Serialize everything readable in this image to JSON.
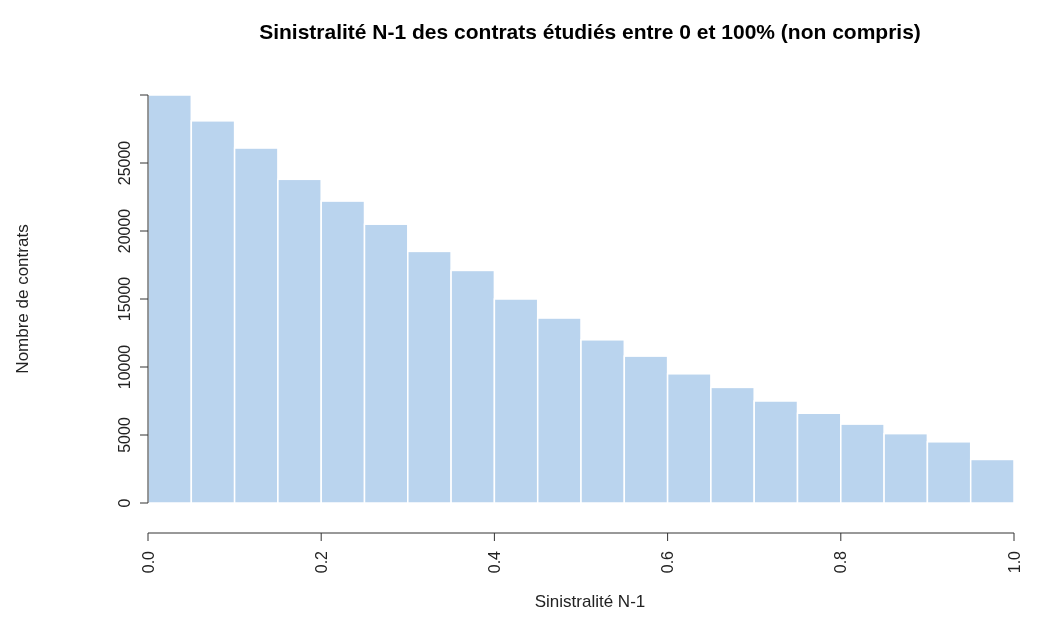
{
  "chart_data": {
    "type": "histogram",
    "title": "Sinistralité N-1 des contrats étudiés entre 0 et 100% (non compris)",
    "xlabel": "Sinistralité N-1",
    "ylabel": "Nombre de contrats",
    "bins": [
      0,
      0.05,
      0.1,
      0.15,
      0.2,
      0.25,
      0.3,
      0.35,
      0.4,
      0.45,
      0.5,
      0.55,
      0.6,
      0.65,
      0.7,
      0.75,
      0.8,
      0.85,
      0.9,
      0.95,
      1
    ],
    "values": [
      30000,
      28100,
      26100,
      23800,
      22200,
      20500,
      18500,
      17100,
      15000,
      13600,
      12000,
      10800,
      9500,
      8500,
      7500,
      6600,
      5800,
      5100,
      4500,
      3200
    ],
    "color": "#bad4ee",
    "xlim": [
      0,
      1
    ],
    "xticks": [
      {
        "value": 0,
        "label": "0.0"
      },
      0.2,
      0.4,
      0.6,
      0.8,
      {
        "value": 1,
        "label": "1.0"
      }
    ],
    "ylim": [
      0,
      30000
    ],
    "yticks": [
      0,
      5000,
      10000,
      15000,
      20000,
      25000,
      {
        "value": 30000,
        "label": null
      }
    ],
    "grid": false,
    "legend": false
  }
}
